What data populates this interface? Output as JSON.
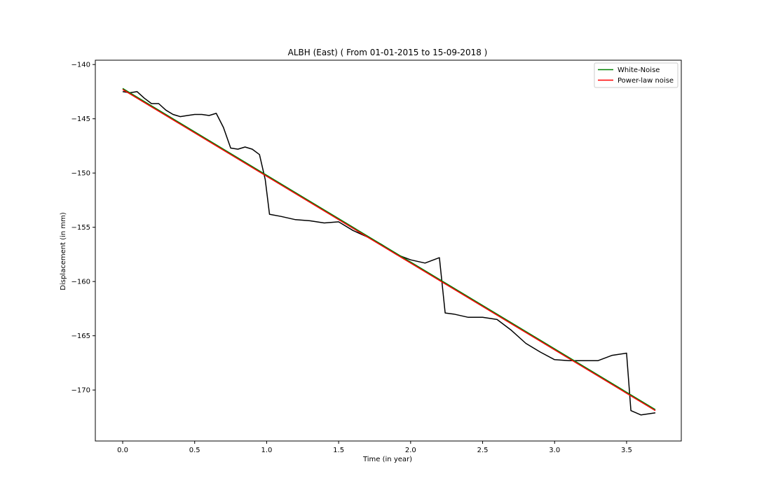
{
  "chart_data": {
    "type": "line",
    "title": "ALBH (East) ( From 01-01-2015 to 15-09-2018 )",
    "xlabel": "Time (in year)",
    "ylabel": "Displacement (in mm)",
    "xlim": [
      -0.19,
      3.88
    ],
    "ylim": [
      -174.7,
      -139.6
    ],
    "xticks": [
      0.0,
      0.5,
      1.0,
      1.5,
      2.0,
      2.5,
      3.0,
      3.5
    ],
    "xtick_labels": [
      "0.0",
      "0.5",
      "1.0",
      "1.5",
      "2.0",
      "2.5",
      "3.0",
      "3.5"
    ],
    "yticks": [
      -140,
      -145,
      -150,
      -155,
      -160,
      -165,
      -170
    ],
    "ytick_labels": [
      "−140",
      "−145",
      "−150",
      "−155",
      "−160",
      "−165",
      "−170"
    ],
    "grid": false,
    "legend": {
      "placement": "top-right"
    },
    "series": [
      {
        "color": "#000000",
        "x": [
          0.0,
          0.05,
          0.1,
          0.15,
          0.2,
          0.25,
          0.3,
          0.35,
          0.4,
          0.45,
          0.5,
          0.55,
          0.6,
          0.65,
          0.7,
          0.75,
          0.8,
          0.85,
          0.9,
          0.95,
          0.99,
          1.02,
          1.1,
          1.2,
          1.3,
          1.4,
          1.5,
          1.6,
          1.7,
          1.8,
          1.9,
          2.0,
          2.1,
          2.2,
          2.24,
          2.3,
          2.4,
          2.5,
          2.6,
          2.7,
          2.8,
          2.9,
          3.0,
          3.1,
          3.2,
          3.3,
          3.4,
          3.5,
          3.53,
          3.6,
          3.7
        ],
        "y": [
          -142.5,
          -142.6,
          -142.5,
          -143.1,
          -143.6,
          -143.6,
          -144.2,
          -144.6,
          -144.8,
          -144.7,
          -144.6,
          -144.6,
          -144.7,
          -144.5,
          -145.8,
          -147.7,
          -147.8,
          -147.6,
          -147.8,
          -148.3,
          -150.6,
          -153.8,
          -154.0,
          -154.3,
          -154.4,
          -154.6,
          -154.5,
          -155.3,
          -155.9,
          -156.6,
          -157.5,
          -158.0,
          -158.3,
          -157.8,
          -162.9,
          -163.0,
          -163.3,
          -163.3,
          -163.5,
          -164.5,
          -165.7,
          -166.5,
          -167.2,
          -167.3,
          -167.3,
          -167.3,
          -166.8,
          -166.6,
          -171.9,
          -172.3,
          -172.1
        ]
      },
      {
        "name": "White-Noise",
        "color": "#008000",
        "x": [
          0.0,
          3.7
        ],
        "y": [
          -142.2,
          -171.8
        ]
      },
      {
        "name": "Power-law noise",
        "color": "#ff0000",
        "x": [
          0.0,
          3.7
        ],
        "y": [
          -142.3,
          -171.9
        ]
      }
    ]
  }
}
